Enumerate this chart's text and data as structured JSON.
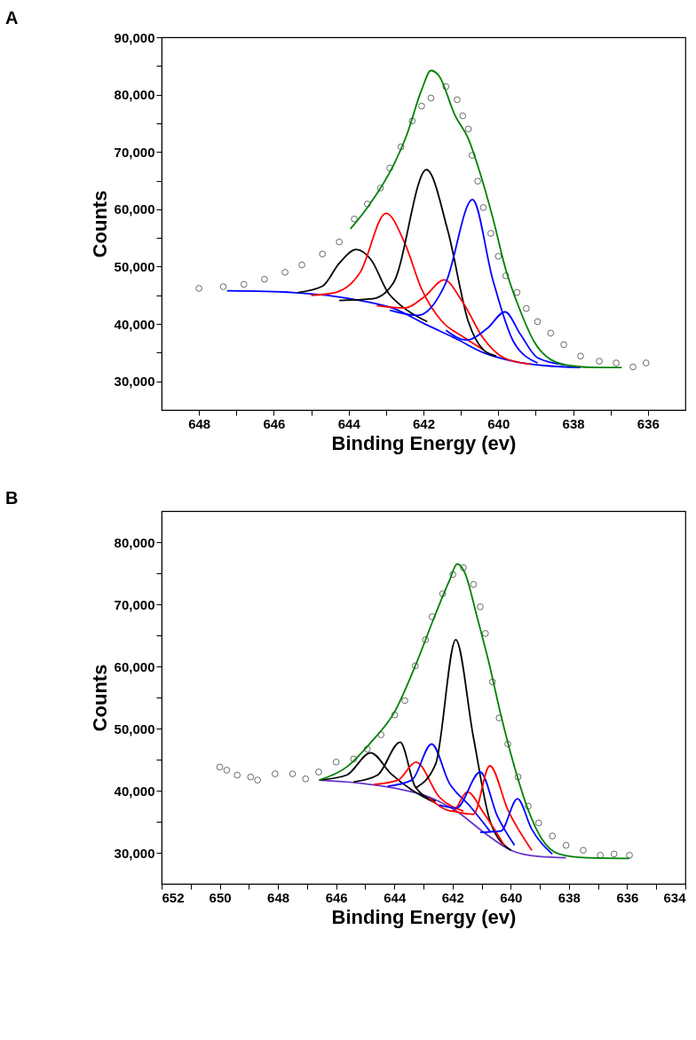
{
  "chart_data": [
    {
      "type": "line",
      "title": "A",
      "xlabel": "Binding Energy (ev)",
      "ylabel": "Counts",
      "xlim": [
        649,
        635
      ],
      "ylim": [
        25000,
        90000
      ],
      "xticks": [
        648,
        {
          "value": 647,
          "label": null
        },
        646,
        {
          "value": 645,
          "label": null
        },
        644,
        {
          "value": 643,
          "label": null
        },
        642,
        {
          "value": 641,
          "label": null
        },
        640,
        {
          "value": 639,
          "label": null
        },
        638,
        {
          "value": 637,
          "label": null
        },
        636
      ],
      "yticks": [
        {
          "value": 30000,
          "label": "30,000"
        },
        {
          "value": 35000,
          "label": null
        },
        {
          "value": 40000,
          "label": "40,000"
        },
        {
          "value": 45000,
          "label": null
        },
        {
          "value": 50000,
          "label": "50,000"
        },
        {
          "value": 55000,
          "label": null
        },
        {
          "value": 60000,
          "label": "60,000"
        },
        {
          "value": 65000,
          "label": null
        },
        {
          "value": 70000,
          "label": "70,000"
        },
        {
          "value": 75000,
          "label": null
        },
        {
          "value": 80000,
          "label": "80,000"
        },
        {
          "value": 85000,
          "label": null
        },
        {
          "value": 90000,
          "label": "90,000"
        }
      ],
      "grid": false,
      "series": [
        {
          "type": "scatter",
          "marker": "circle",
          "color": "#ffffff",
          "x": [
            648.0,
            647.35,
            646.8,
            646.25,
            645.7,
            645.25,
            644.7,
            644.25,
            643.85,
            643.5,
            643.15,
            642.9,
            642.6,
            642.3,
            642.05,
            641.8,
            641.4,
            641.1,
            640.95,
            640.8,
            640.7,
            640.55,
            640.4,
            640.2,
            640.0,
            639.8,
            639.5,
            639.25,
            638.95,
            638.6,
            638.25,
            637.8,
            637.3,
            636.85,
            636.4,
            636.05
          ],
          "values": [
            46200,
            46500,
            46900,
            47800,
            49000,
            50300,
            52200,
            54300,
            58300,
            60900,
            63700,
            67200,
            70900,
            75400,
            78000,
            79400,
            81400,
            79100,
            76300,
            74000,
            69400,
            64900,
            60300,
            55800,
            51800,
            48400,
            45500,
            42700,
            40400,
            38400,
            36400,
            34400,
            33500,
            33200,
            32500,
            33200
          ]
        },
        {
          "type": "line",
          "color": "#0000ff",
          "x": [
            647.25,
            645.5,
            643.7,
            642.8,
            641.9,
            641.15,
            640.4,
            639.6,
            638.7,
            637.8
          ],
          "values": [
            45800,
            45500,
            44100,
            42700,
            39800,
            37500,
            35000,
            33500,
            32700,
            32400
          ]
        },
        {
          "type": "line",
          "color": "#000000",
          "x": [
            645.35,
            644.7,
            644.25,
            643.8,
            643.4,
            642.95,
            642.6,
            641.9
          ],
          "values": [
            45500,
            46600,
            50600,
            53000,
            51200,
            45500,
            43200,
            40400
          ]
        },
        {
          "type": "line",
          "color": "#ff0000",
          "x": [
            645.0,
            644.35,
            643.7,
            643.0,
            642.5,
            642.05,
            641.5,
            640.95,
            640.4
          ],
          "values": [
            45000,
            45500,
            48900,
            59300,
            54100,
            46100,
            40400,
            37800,
            35500
          ]
        },
        {
          "type": "line",
          "color": "#000000",
          "x": [
            644.25,
            643.35,
            642.8,
            641.92,
            641.35,
            640.8,
            640.4,
            640.05
          ],
          "values": [
            44100,
            44400,
            47200,
            66900,
            56300,
            40400,
            35500,
            34400
          ]
        },
        {
          "type": "line",
          "color": "#ff0000",
          "x": [
            643.25,
            642.5,
            641.95,
            641.45,
            640.95,
            640.4,
            639.85,
            639.15
          ],
          "values": [
            43200,
            42800,
            44900,
            47700,
            43800,
            37500,
            34100,
            33000
          ]
        },
        {
          "type": "line",
          "color": "#0000ff",
          "x": [
            642.9,
            642.15,
            641.4,
            640.69,
            640.15,
            639.6,
            638.95
          ],
          "values": [
            42400,
            41500,
            47200,
            61700,
            47800,
            37000,
            33200
          ]
        },
        {
          "type": "line",
          "color": "#0000ff",
          "x": [
            641.4,
            640.85,
            640.3,
            639.82,
            639.4,
            638.95,
            638.25
          ],
          "values": [
            38900,
            37200,
            39200,
            42100,
            38100,
            34100,
            32900
          ]
        },
        {
          "type": "line",
          "color": "#008000",
          "x": [
            643.95,
            643.5,
            642.8,
            642.45,
            642.05,
            641.8,
            641.6,
            641.15,
            640.8,
            640.5,
            640.15,
            639.8,
            639.4,
            639.05,
            638.6,
            638.05,
            637.3,
            636.7
          ],
          "values": [
            56600,
            60300,
            67700,
            72900,
            80800,
            84200,
            83400,
            76300,
            72300,
            66600,
            58600,
            49500,
            42100,
            37000,
            33800,
            32700,
            32400,
            32400
          ]
        }
      ]
    },
    {
      "type": "line",
      "title": "B",
      "xlabel": "Binding Energy (ev)",
      "ylabel": "Counts",
      "xlim": [
        652,
        634
      ],
      "ylim": [
        25000,
        85000
      ],
      "xticks": [
        652,
        {
          "value": 651,
          "label": null
        },
        650,
        {
          "value": 649,
          "label": null
        },
        648,
        {
          "value": 647,
          "label": null
        },
        646,
        {
          "value": 645,
          "label": null
        },
        644,
        {
          "value": 643,
          "label": null
        },
        642,
        {
          "value": 641,
          "label": null
        },
        640,
        {
          "value": 639,
          "label": null
        },
        638,
        {
          "value": 637,
          "label": null
        },
        636,
        {
          "value": 635,
          "label": null
        },
        634
      ],
      "yticks": [
        {
          "value": 30000,
          "label": "30,000"
        },
        {
          "value": 35000,
          "label": null
        },
        {
          "value": 40000,
          "label": "40,000"
        },
        {
          "value": 45000,
          "label": null
        },
        {
          "value": 50000,
          "label": "50,000"
        },
        {
          "value": 55000,
          "label": null
        },
        {
          "value": 60000,
          "label": "60,000"
        },
        {
          "value": 65000,
          "label": null
        },
        {
          "value": 70000,
          "label": "70,000"
        },
        {
          "value": 75000,
          "label": null
        },
        {
          "value": 80000,
          "label": "80,000"
        }
      ],
      "grid": false,
      "series": [
        {
          "type": "scatter",
          "marker": "circle",
          "color": "#ffffff",
          "x": [
            650.0,
            649.76,
            649.4,
            648.94,
            648.7,
            648.1,
            647.5,
            647.05,
            646.6,
            646.0,
            645.4,
            644.93,
            644.46,
            643.99,
            643.64,
            643.28,
            642.93,
            642.7,
            642.34,
            641.99,
            641.63,
            641.28,
            641.05,
            640.87,
            640.63,
            640.4,
            640.1,
            639.75,
            639.4,
            639.04,
            638.57,
            638.1,
            637.51,
            636.92,
            636.45,
            635.92
          ],
          "values": [
            43800,
            43300,
            42500,
            42200,
            41700,
            42700,
            42700,
            41900,
            43000,
            44600,
            45100,
            46700,
            49000,
            52200,
            54500,
            60100,
            64300,
            68000,
            71700,
            74800,
            75900,
            73200,
            69600,
            65300,
            57500,
            51700,
            47500,
            42200,
            37500,
            34800,
            32700,
            31200,
            30400,
            29600,
            29800,
            29600
          ]
        },
        {
          "type": "line",
          "color": "#6633cc",
          "x": [
            646.58,
            645.17,
            643.99,
            642.81,
            641.87,
            640.93,
            639.99,
            639.04,
            638.1
          ],
          "values": [
            41700,
            41200,
            40400,
            39000,
            36700,
            33300,
            30400,
            29400,
            29200
          ]
        },
        {
          "type": "line",
          "color": "#000000",
          "x": [
            646.58,
            645.64,
            644.82,
            644.11,
            643.4,
            642.58
          ],
          "values": [
            41700,
            42500,
            46100,
            42700,
            40100,
            38000
          ]
        },
        {
          "type": "line",
          "color": "#000000",
          "x": [
            645.4,
            644.58,
            643.8,
            643.28,
            642.58
          ],
          "values": [
            41400,
            42500,
            47800,
            40600,
            38300
          ]
        },
        {
          "type": "line",
          "color": "#ff0000",
          "x": [
            644.7,
            643.87,
            643.26,
            642.46,
            641.63
          ],
          "values": [
            41000,
            41700,
            44600,
            39000,
            36700
          ]
        },
        {
          "type": "line",
          "color": "#0000ff",
          "x": [
            644.23,
            643.4,
            642.72,
            642.11,
            641.4,
            640.69
          ],
          "values": [
            40700,
            41700,
            47500,
            41200,
            37500,
            33300
          ]
        },
        {
          "type": "line",
          "color": "#000000",
          "x": [
            643.28,
            642.58,
            641.89,
            641.28,
            640.69,
            639.99
          ],
          "values": [
            40400,
            44300,
            64300,
            48500,
            34800,
            30400
          ]
        },
        {
          "type": "line",
          "color": "#ff0000",
          "x": [
            642.81,
            641.99,
            641.49,
            640.93,
            640.22
          ],
          "values": [
            38800,
            36700,
            39800,
            36400,
            31200
          ]
        },
        {
          "type": "line",
          "color": "#0000ff",
          "x": [
            642.46,
            641.87,
            641.05,
            640.46,
            639.87
          ],
          "values": [
            37700,
            37200,
            43000,
            35900,
            31200
          ]
        },
        {
          "type": "line",
          "color": "#ff0000",
          "x": [
            641.99,
            641.28,
            640.72,
            640.1,
            639.28
          ],
          "values": [
            36700,
            36200,
            44000,
            36900,
            30400
          ]
        },
        {
          "type": "line",
          "color": "#0000ff",
          "x": [
            641.05,
            640.34,
            639.77,
            639.28,
            638.57
          ],
          "values": [
            33300,
            33500,
            38700,
            33800,
            29800
          ]
        },
        {
          "type": "line",
          "color": "#008000",
          "x": [
            646.58,
            645.64,
            644.82,
            643.99,
            643.28,
            642.58,
            642.11,
            641.84,
            641.58,
            641.16,
            640.75,
            640.34,
            639.87,
            639.4,
            638.93,
            638.34,
            637.39,
            635.92
          ],
          "values": [
            41700,
            43800,
            47700,
            52700,
            60100,
            68500,
            73800,
            76500,
            75100,
            68000,
            60600,
            52200,
            43800,
            36900,
            32200,
            29800,
            29200,
            29100
          ]
        }
      ]
    }
  ]
}
